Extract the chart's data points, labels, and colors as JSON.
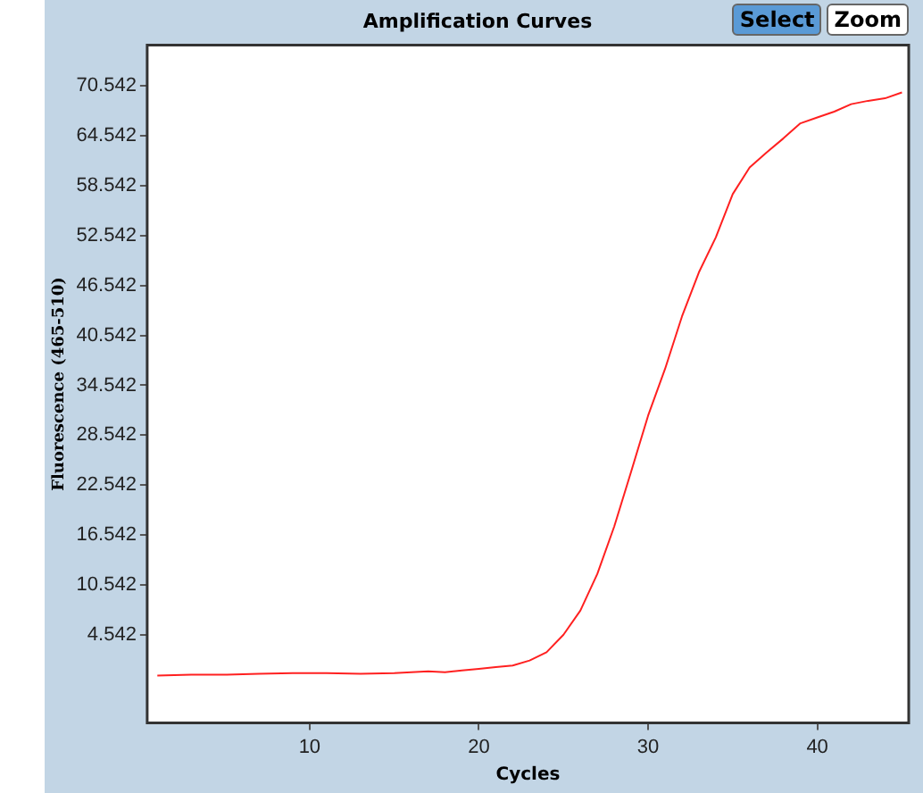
{
  "chart_data": {
    "type": "line",
    "title": "Amplification Curves",
    "xlabel": "Cycles",
    "ylabel": "Fluorescence (465-510)",
    "annotations": [
      "Select",
      "Zoom"
    ],
    "x": [
      1,
      3,
      5,
      7,
      9,
      11,
      13,
      15,
      17,
      18,
      19,
      20,
      21,
      22,
      23,
      24,
      25,
      26,
      27,
      28,
      29,
      30,
      31,
      32,
      33,
      34,
      35,
      36,
      37,
      38,
      39,
      40,
      41,
      42,
      43,
      44,
      45
    ],
    "series": [
      {
        "color": "#ff2020",
        "values": [
          -0.3,
          -0.2,
          -0.2,
          -0.1,
          0,
          0,
          -0.1,
          0,
          0.2,
          0.1,
          0.3,
          0.5,
          0.7,
          0.9,
          1.5,
          2.5,
          4.6,
          7.5,
          11.9,
          17.6,
          24.2,
          30.9,
          36.5,
          42.8,
          48.1,
          52.3,
          57.5,
          60.7,
          62.5,
          64.2,
          66.0,
          66.7,
          67.4,
          68.3,
          68.7,
          69.0,
          69.7
        ]
      }
    ],
    "xlim": [
      0.4,
      45.4
    ],
    "xticks": [
      10,
      20,
      30,
      40
    ],
    "ylim": [
      -6,
      75.4
    ],
    "yticks": [
      4.542,
      10.542,
      16.542,
      22.542,
      28.542,
      34.542,
      40.542,
      46.542,
      52.542,
      58.542,
      64.542,
      70.542
    ],
    "grid": false,
    "legend": false,
    "marker": "none",
    "line_style": "solid"
  }
}
